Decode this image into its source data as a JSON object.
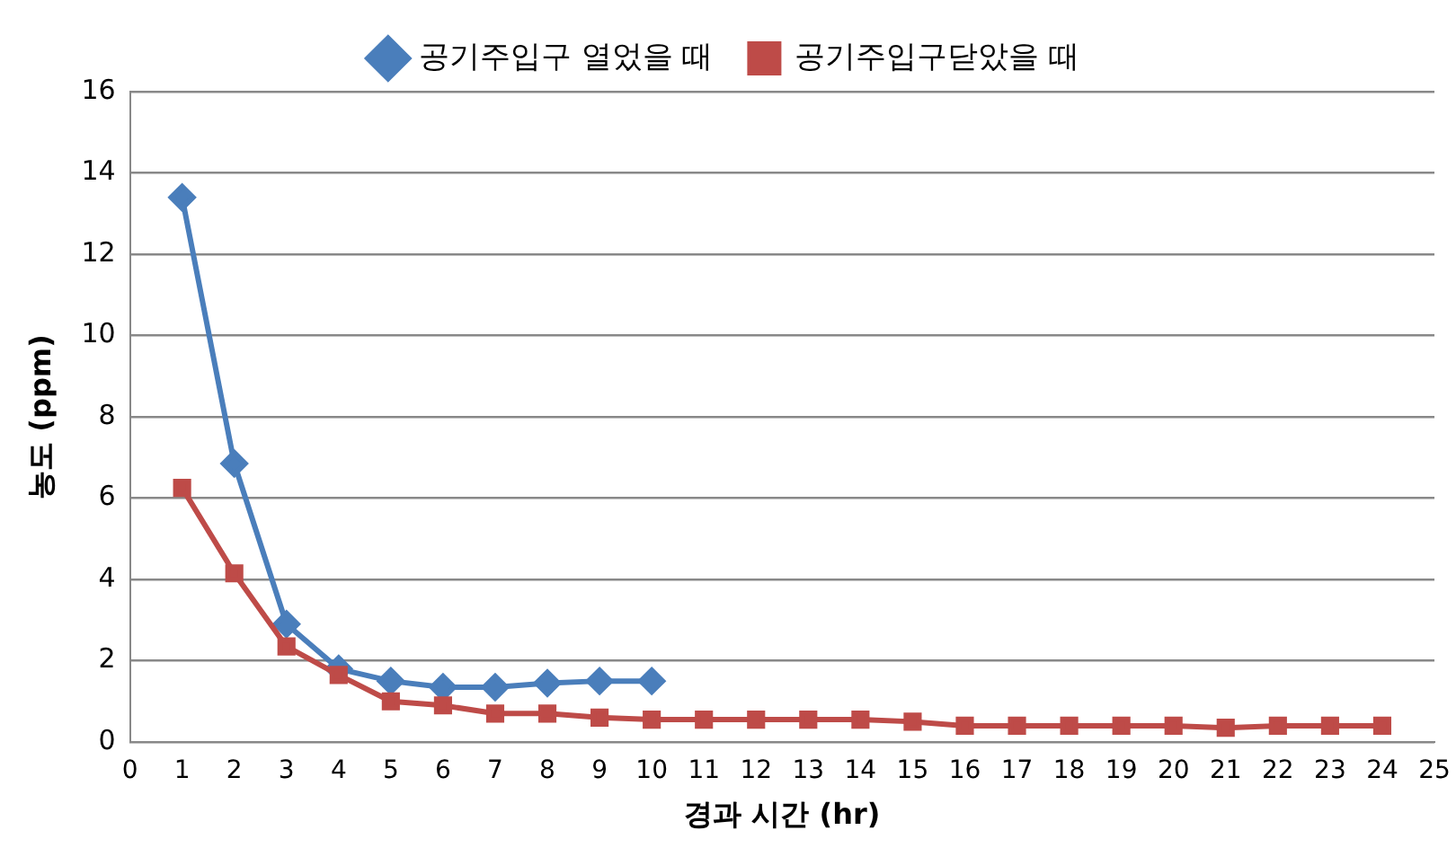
{
  "chart_data": {
    "type": "line",
    "xlabel": "경과 시간 (hr)",
    "ylabel": "농도 (ppm)",
    "x": [
      1,
      2,
      3,
      4,
      5,
      6,
      7,
      8,
      9,
      10,
      11,
      12,
      13,
      14,
      15,
      16,
      17,
      18,
      19,
      20,
      21,
      22,
      23,
      24
    ],
    "series": [
      {
        "name": "공기주입구 열었을 때",
        "color": "#4a7ebb",
        "marker": "diamond",
        "x": [
          1,
          2,
          3,
          4,
          5,
          6,
          7,
          8,
          9,
          10
        ],
        "values": [
          13.4,
          6.85,
          2.9,
          1.8,
          1.5,
          1.35,
          1.35,
          1.45,
          1.5,
          1.5
        ]
      },
      {
        "name": "공기주입구닫았을 때",
        "color": "#be4b48",
        "marker": "square",
        "values": [
          6.25,
          4.15,
          2.35,
          1.65,
          1.0,
          0.9,
          0.7,
          0.7,
          0.6,
          0.55,
          0.55,
          0.55,
          0.55,
          0.55,
          0.5,
          0.4,
          0.4,
          0.4,
          0.4,
          0.4,
          0.35,
          0.4,
          0.4,
          0.4
        ]
      }
    ],
    "xlim": [
      0,
      25
    ],
    "xticks": [
      0,
      1,
      2,
      3,
      4,
      5,
      6,
      7,
      8,
      9,
      10,
      11,
      12,
      13,
      14,
      15,
      16,
      17,
      18,
      19,
      20,
      21,
      22,
      23,
      24,
      25
    ],
    "ylim": [
      0,
      16
    ],
    "yticks": [
      0,
      2,
      4,
      6,
      8,
      10,
      12,
      14,
      16
    ],
    "grid": "y",
    "legend": "top",
    "line_style": "solid"
  }
}
